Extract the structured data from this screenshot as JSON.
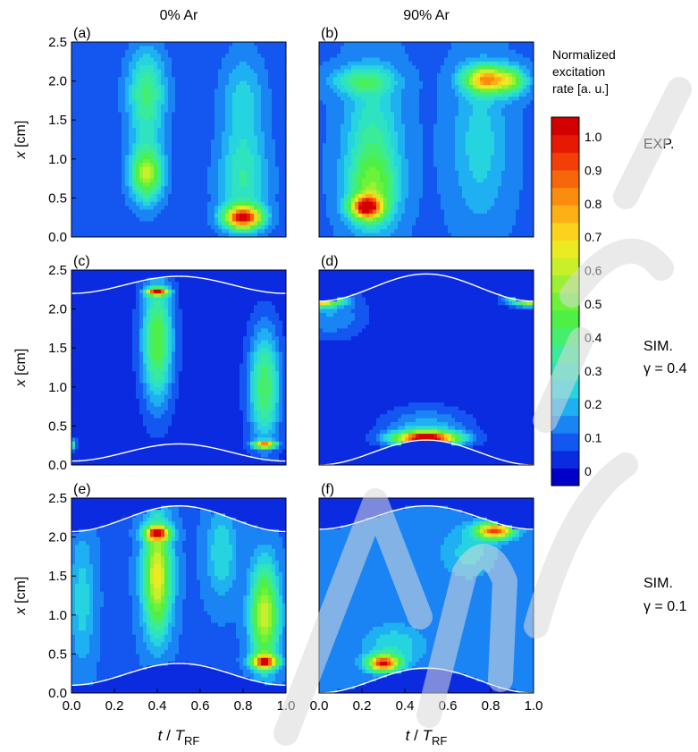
{
  "column_headers": [
    "0% Ar",
    "90% Ar"
  ],
  "row_labels": [
    "EXP.",
    "SIM.",
    "SIM."
  ],
  "row_gamma": [
    "",
    "γ = 0.4",
    "γ = 0.1"
  ],
  "colorbar": {
    "title_lines": [
      "Normalized",
      "excitation",
      "rate [a. u.]"
    ],
    "ticks": [
      "1.0",
      "0.9",
      "0.8",
      "0.7",
      "0.6",
      "0.5",
      "0.4",
      "0.3",
      "0.2",
      "0.1",
      "0"
    ],
    "tick_values": [
      1.0,
      0.9,
      0.8,
      0.7,
      0.6,
      0.5,
      0.4,
      0.3,
      0.2,
      0.1,
      0.0
    ],
    "colors": [
      "#0000c8",
      "#0b2be0",
      "#1457f0",
      "#1a84f5",
      "#1fb0f2",
      "#26d4e0",
      "#2fe3c0",
      "#3aeb9a",
      "#45ef6e",
      "#4ff046",
      "#6df23a",
      "#9cf031",
      "#c8ef2a",
      "#ecea22",
      "#fcd21c",
      "#fcb016",
      "#fb8c10",
      "#f8660b",
      "#f23e07",
      "#e61a04",
      "#d40000"
    ],
    "range": [
      0,
      1.05
    ]
  },
  "chart_data": [
    {
      "type": "heatmap",
      "panel_label": "(a)",
      "xlabel": "",
      "ylabel": "x [cm]",
      "xlim": [
        0,
        1
      ],
      "ylim": [
        0,
        2.5
      ],
      "yticks": [
        "0.0",
        "0.5",
        "1.0",
        "1.5",
        "2.0",
        "2.5"
      ],
      "xticks": [],
      "background": 0.12,
      "blobs": [
        {
          "t": 0.35,
          "x": 1.9,
          "st": 0.06,
          "sx": 0.35,
          "amp": 0.22
        },
        {
          "t": 0.35,
          "x": 0.8,
          "st": 0.05,
          "sx": 0.22,
          "amp": 0.42
        },
        {
          "t": 0.35,
          "x": 1.3,
          "st": 0.06,
          "sx": 0.6,
          "amp": 0.12
        },
        {
          "t": 0.8,
          "x": 1.7,
          "st": 0.07,
          "sx": 0.45,
          "amp": 0.16
        },
        {
          "t": 0.8,
          "x": 0.7,
          "st": 0.08,
          "sx": 0.4,
          "amp": 0.22
        },
        {
          "t": 0.8,
          "x": 0.25,
          "st": 0.06,
          "sx": 0.1,
          "amp": 0.85
        }
      ],
      "sheath": null
    },
    {
      "type": "heatmap",
      "panel_label": "(b)",
      "xlabel": "",
      "ylabel": "",
      "xlim": [
        0,
        1
      ],
      "ylim": [
        0,
        2.5
      ],
      "yticks": [],
      "xticks": [],
      "background": 0.14,
      "blobs": [
        {
          "t": 0.25,
          "x": 1.3,
          "st": 0.09,
          "sx": 0.6,
          "amp": 0.2
        },
        {
          "t": 0.25,
          "x": 0.6,
          "st": 0.08,
          "sx": 0.35,
          "amp": 0.3
        },
        {
          "t": 0.22,
          "x": 0.38,
          "st": 0.05,
          "sx": 0.1,
          "amp": 0.75
        },
        {
          "t": 0.2,
          "x": 2.0,
          "st": 0.1,
          "sx": 0.12,
          "amp": 0.22
        },
        {
          "t": 0.78,
          "x": 2.02,
          "st": 0.07,
          "sx": 0.12,
          "amp": 0.62
        },
        {
          "t": 0.75,
          "x": 1.2,
          "st": 0.09,
          "sx": 0.7,
          "amp": 0.14
        },
        {
          "t": 0.9,
          "x": 2.0,
          "st": 0.05,
          "sx": 0.12,
          "amp": 0.3
        }
      ],
      "sheath": null
    },
    {
      "type": "heatmap",
      "panel_label": "(c)",
      "xlabel": "",
      "ylabel": "x [cm]",
      "xlim": [
        0,
        1
      ],
      "ylim": [
        0,
        2.5
      ],
      "yticks": [
        "0.0",
        "0.5",
        "1.0",
        "1.5",
        "2.0",
        "2.5"
      ],
      "xticks": [],
      "background": 0.07,
      "blobs": [
        {
          "t": 0.4,
          "x": 1.6,
          "st": 0.05,
          "sx": 0.55,
          "amp": 0.42
        },
        {
          "t": 0.4,
          "x": 2.22,
          "st": 0.035,
          "sx": 0.03,
          "amp": 0.8
        },
        {
          "t": 0.9,
          "x": 1.0,
          "st": 0.05,
          "sx": 0.5,
          "amp": 0.38
        },
        {
          "t": 0.9,
          "x": 0.26,
          "st": 0.035,
          "sx": 0.03,
          "amp": 0.75
        },
        {
          "t": 0.0,
          "x": 0.26,
          "st": 0.015,
          "sx": 0.05,
          "amp": 0.3
        }
      ],
      "sheath": {
        "bottom": [
          0.05,
          0.27
        ],
        "top": [
          2.2,
          2.42
        ]
      }
    },
    {
      "type": "heatmap",
      "panel_label": "(d)",
      "xlabel": "",
      "ylabel": "",
      "xlim": [
        0,
        1
      ],
      "ylim": [
        0,
        2.5
      ],
      "yticks": [],
      "xticks": [],
      "background": 0.06,
      "blobs": [
        {
          "t": 0.5,
          "x": 0.34,
          "st": 0.1,
          "sx": 0.06,
          "amp": 0.95
        },
        {
          "t": 0.5,
          "x": 0.45,
          "st": 0.14,
          "sx": 0.2,
          "amp": 0.18
        },
        {
          "t": 0.0,
          "x": 2.13,
          "st": 0.07,
          "sx": 0.06,
          "amp": 0.85
        },
        {
          "t": 1.0,
          "x": 2.13,
          "st": 0.07,
          "sx": 0.06,
          "amp": 0.8
        },
        {
          "t": 0.05,
          "x": 1.9,
          "st": 0.12,
          "sx": 0.2,
          "amp": 0.14
        }
      ],
      "sheath": {
        "bottom": [
          0.0,
          0.32
        ],
        "top": [
          2.1,
          2.45
        ]
      }
    },
    {
      "type": "heatmap",
      "panel_label": "(e)",
      "xlabel": "t / T_RF",
      "ylabel": "x [cm]",
      "xlim": [
        0,
        1
      ],
      "ylim": [
        0,
        2.5
      ],
      "yticks": [
        "0.0",
        "0.5",
        "1.0",
        "1.5",
        "2.0",
        "2.5"
      ],
      "xticks": [
        "0.0",
        "0.2",
        "0.4",
        "0.6",
        "0.8",
        "1.0"
      ],
      "background": 0.14,
      "blobs": [
        {
          "t": 0.4,
          "x": 1.5,
          "st": 0.045,
          "sx": 0.5,
          "amp": 0.55
        },
        {
          "t": 0.4,
          "x": 2.05,
          "st": 0.04,
          "sx": 0.06,
          "amp": 0.7
        },
        {
          "t": 0.9,
          "x": 1.0,
          "st": 0.045,
          "sx": 0.45,
          "amp": 0.5
        },
        {
          "t": 0.9,
          "x": 0.4,
          "st": 0.04,
          "sx": 0.06,
          "amp": 0.75
        },
        {
          "t": 0.7,
          "x": 1.8,
          "st": 0.05,
          "sx": 0.4,
          "amp": 0.16
        },
        {
          "t": 0.05,
          "x": 1.2,
          "st": 0.04,
          "sx": 0.6,
          "amp": 0.14
        }
      ],
      "sheath": {
        "bottom": [
          0.1,
          0.38
        ],
        "top": [
          2.07,
          2.4
        ]
      }
    },
    {
      "type": "heatmap",
      "panel_label": "(f)",
      "xlabel": "t / T_RF",
      "ylabel": "",
      "xlim": [
        0,
        1
      ],
      "ylim": [
        0,
        2.5
      ],
      "yticks": [],
      "xticks": [
        "0.0",
        "0.2",
        "0.4",
        "0.6",
        "0.8",
        "1.0"
      ],
      "background": 0.15,
      "blobs": [
        {
          "t": 0.3,
          "x": 0.38,
          "st": 0.05,
          "sx": 0.07,
          "amp": 0.8
        },
        {
          "t": 0.82,
          "x": 2.08,
          "st": 0.06,
          "sx": 0.07,
          "amp": 0.75
        },
        {
          "t": 0.35,
          "x": 0.6,
          "st": 0.1,
          "sx": 0.2,
          "amp": 0.15
        },
        {
          "t": 0.7,
          "x": 1.8,
          "st": 0.1,
          "sx": 0.25,
          "amp": 0.12
        }
      ],
      "sheath": {
        "bottom": [
          0.0,
          0.32
        ],
        "top": [
          2.1,
          2.4
        ]
      }
    }
  ]
}
